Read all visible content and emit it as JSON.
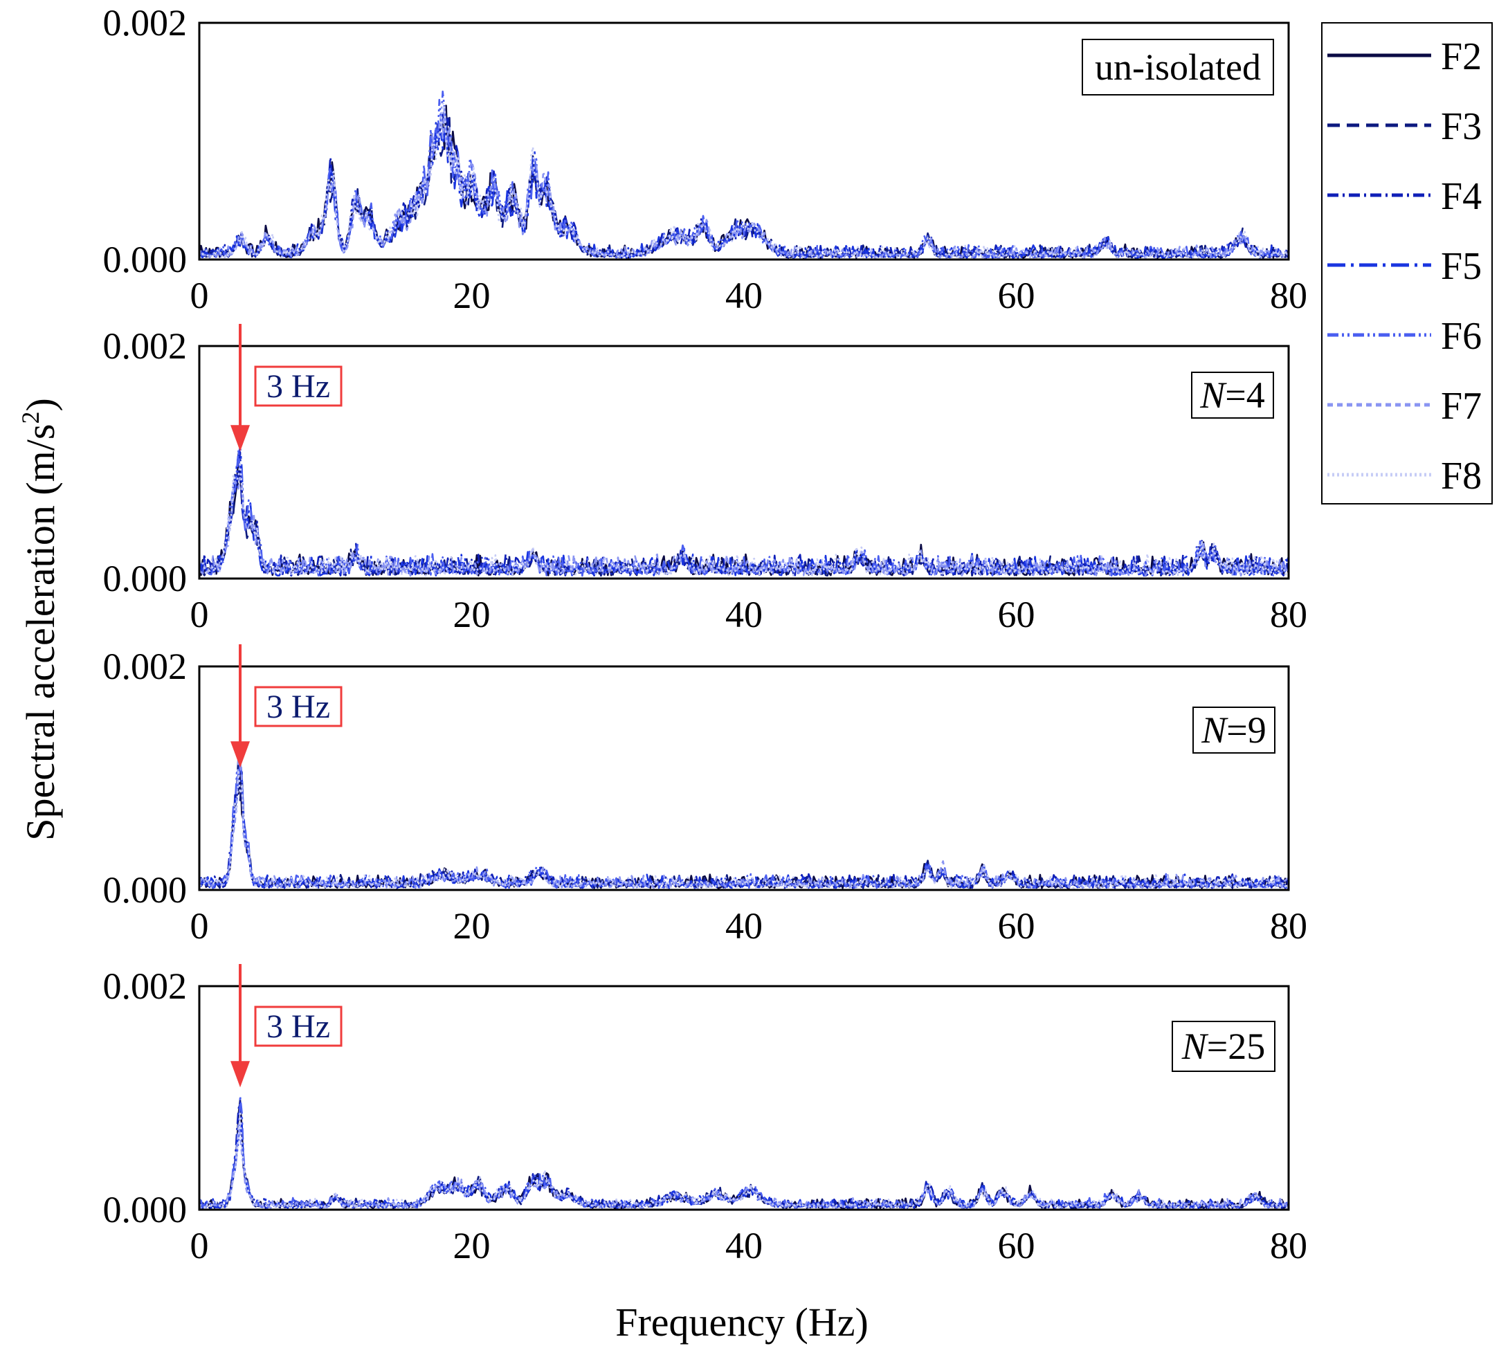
{
  "figure": {
    "ylabel": "Spectral acceleration (m/s",
    "ylabel_sup": "2",
    "ylabel_close": ")",
    "xlabel": "Frequency (Hz)"
  },
  "legend": [
    {
      "label": "F2",
      "color": "#0b0b45",
      "dash": "solid"
    },
    {
      "label": "F3",
      "color": "#0d1a80",
      "dash": "dash"
    },
    {
      "label": "F4",
      "color": "#1020b8",
      "dash": "dashdot"
    },
    {
      "label": "F5",
      "color": "#1a35e0",
      "dash": "longdashdot"
    },
    {
      "label": "F6",
      "color": "#4a5ef0",
      "dash": "dashdotdot"
    },
    {
      "label": "F7",
      "color": "#8a95f2",
      "dash": "shortdash"
    },
    {
      "label": "F8",
      "color": "#c6ccf6",
      "dash": "dot"
    }
  ],
  "annotation_color": "#f03c3c",
  "chart_data": [
    {
      "type": "line",
      "panel_label": "un-isolated",
      "xlabel": "Frequency (Hz)",
      "ylabel": "Spectral acceleration (m/s2)",
      "xlim": [
        0,
        80
      ],
      "ylim": [
        0,
        0.002
      ],
      "xticks": [
        "0",
        "20",
        "40",
        "60",
        "80"
      ],
      "yticks": [
        "0.000",
        "0.002"
      ],
      "series_names": [
        "F2",
        "F3",
        "F4",
        "F5",
        "F6",
        "F7",
        "F8"
      ],
      "base_level": 3e-05,
      "noise_level": 4e-05,
      "seed": 11,
      "peaks": [
        {
          "x": 3,
          "y": 0.00015,
          "w": 0.5
        },
        {
          "x": 5,
          "y": 0.00018,
          "w": 0.5
        },
        {
          "x": 8.5,
          "y": 0.00025,
          "w": 0.8
        },
        {
          "x": 9.7,
          "y": 0.00083,
          "w": 0.5
        },
        {
          "x": 11.5,
          "y": 0.00055,
          "w": 0.5
        },
        {
          "x": 12.5,
          "y": 0.00038,
          "w": 0.6
        },
        {
          "x": 15,
          "y": 0.0004,
          "w": 1.2
        },
        {
          "x": 16.5,
          "y": 0.00055,
          "w": 0.8
        },
        {
          "x": 17.3,
          "y": 0.0009,
          "w": 0.5
        },
        {
          "x": 18,
          "y": 0.00115,
          "w": 0.5
        },
        {
          "x": 18.8,
          "y": 0.00085,
          "w": 0.6
        },
        {
          "x": 20,
          "y": 0.00078,
          "w": 0.7
        },
        {
          "x": 21.5,
          "y": 0.00072,
          "w": 0.7
        },
        {
          "x": 23,
          "y": 0.00062,
          "w": 0.7
        },
        {
          "x": 24.5,
          "y": 0.00087,
          "w": 0.5
        },
        {
          "x": 25.5,
          "y": 0.00068,
          "w": 0.6
        },
        {
          "x": 27,
          "y": 0.0003,
          "w": 1.0
        },
        {
          "x": 35,
          "y": 0.0002,
          "w": 1.5
        },
        {
          "x": 37,
          "y": 0.00027,
          "w": 0.6
        },
        {
          "x": 39.5,
          "y": 0.00024,
          "w": 1.2
        },
        {
          "x": 41,
          "y": 0.0002,
          "w": 1.0
        },
        {
          "x": 53.5,
          "y": 0.00015,
          "w": 0.4
        },
        {
          "x": 66.5,
          "y": 0.00012,
          "w": 0.5
        },
        {
          "x": 76.5,
          "y": 0.00017,
          "w": 0.6
        }
      ]
    },
    {
      "type": "line",
      "panel_label_italic": "N",
      "panel_label": "=4",
      "annotation": "3 Hz",
      "annotation_x": 3,
      "xlabel": "Frequency (Hz)",
      "ylabel": "Spectral acceleration (m/s2)",
      "xlim": [
        0,
        80
      ],
      "ylim": [
        0,
        0.002
      ],
      "xticks": [
        "0",
        "20",
        "40",
        "60",
        "80"
      ],
      "yticks": [
        "0.000",
        "0.002"
      ],
      "series_names": [
        "F2",
        "F3",
        "F4",
        "F5",
        "F6",
        "F7",
        "F8"
      ],
      "base_level": 6e-05,
      "noise_level": 6e-05,
      "seed": 23,
      "peaks": [
        {
          "x": 3,
          "y": 0.00105,
          "w": 0.35
        },
        {
          "x": 2.5,
          "y": 0.0006,
          "w": 0.4
        },
        {
          "x": 3.7,
          "y": 0.00052,
          "w": 0.3
        },
        {
          "x": 4.2,
          "y": 0.00035,
          "w": 0.3
        },
        {
          "x": 2,
          "y": 0.0002,
          "w": 0.4
        },
        {
          "x": 11.5,
          "y": 0.00015,
          "w": 0.4
        },
        {
          "x": 24.5,
          "y": 0.00015,
          "w": 0.4
        },
        {
          "x": 35.5,
          "y": 0.00014,
          "w": 0.4
        },
        {
          "x": 48.5,
          "y": 0.00016,
          "w": 0.4
        },
        {
          "x": 53,
          "y": 0.00014,
          "w": 0.4
        },
        {
          "x": 73.5,
          "y": 0.0002,
          "w": 0.4
        },
        {
          "x": 74.5,
          "y": 0.00017,
          "w": 0.4
        }
      ]
    },
    {
      "type": "line",
      "panel_label_italic": "N",
      "panel_label": "=9",
      "annotation": "3 Hz",
      "annotation_x": 3,
      "xlabel": "Frequency (Hz)",
      "ylabel": "Spectral acceleration (m/s2)",
      "xlim": [
        0,
        80
      ],
      "ylim": [
        0,
        0.002
      ],
      "xticks": [
        "0",
        "20",
        "40",
        "60",
        "80"
      ],
      "yticks": [
        "0.000",
        "0.002"
      ],
      "series_names": [
        "F2",
        "F3",
        "F4",
        "F5",
        "F6",
        "F7",
        "F8"
      ],
      "base_level": 4e-05,
      "noise_level": 4e-05,
      "seed": 37,
      "peaks": [
        {
          "x": 3,
          "y": 0.00105,
          "w": 0.3
        },
        {
          "x": 2.6,
          "y": 0.00065,
          "w": 0.35
        },
        {
          "x": 3.5,
          "y": 0.00038,
          "w": 0.3
        },
        {
          "x": 18,
          "y": 0.0001,
          "w": 1.0
        },
        {
          "x": 20.5,
          "y": 0.0001,
          "w": 1.0
        },
        {
          "x": 25,
          "y": 0.00014,
          "w": 0.6
        },
        {
          "x": 53.5,
          "y": 0.0002,
          "w": 0.35
        },
        {
          "x": 54.5,
          "y": 0.00016,
          "w": 0.35
        },
        {
          "x": 57.5,
          "y": 0.00016,
          "w": 0.35
        },
        {
          "x": 59.5,
          "y": 0.0001,
          "w": 0.5
        }
      ]
    },
    {
      "type": "line",
      "panel_label_italic": "N",
      "panel_label": "=25",
      "annotation": "3 Hz",
      "annotation_x": 3,
      "xlabel": "Frequency (Hz)",
      "ylabel": "Spectral acceleration (m/s2)",
      "xlim": [
        0,
        80
      ],
      "ylim": [
        0,
        0.002
      ],
      "xticks": [
        "0",
        "20",
        "40",
        "60",
        "80"
      ],
      "yticks": [
        "0.000",
        "0.002"
      ],
      "series_names": [
        "F2",
        "F3",
        "F4",
        "F5",
        "F6",
        "F7",
        "F8"
      ],
      "base_level": 3e-05,
      "noise_level": 3e-05,
      "seed": 53,
      "peaks": [
        {
          "x": 3,
          "y": 0.00098,
          "w": 0.25
        },
        {
          "x": 2.6,
          "y": 0.00035,
          "w": 0.35
        },
        {
          "x": 3.5,
          "y": 0.0002,
          "w": 0.3
        },
        {
          "x": 10,
          "y": 0.0001,
          "w": 0.4
        },
        {
          "x": 17.5,
          "y": 0.0002,
          "w": 0.8
        },
        {
          "x": 19,
          "y": 0.00022,
          "w": 0.8
        },
        {
          "x": 20.5,
          "y": 0.00024,
          "w": 0.6
        },
        {
          "x": 22.5,
          "y": 0.00018,
          "w": 0.8
        },
        {
          "x": 24.5,
          "y": 0.00025,
          "w": 0.6
        },
        {
          "x": 25.5,
          "y": 0.00026,
          "w": 0.6
        },
        {
          "x": 27,
          "y": 0.00012,
          "w": 0.8
        },
        {
          "x": 35,
          "y": 0.0001,
          "w": 1.2
        },
        {
          "x": 38,
          "y": 0.00012,
          "w": 1.0
        },
        {
          "x": 40.5,
          "y": 0.00016,
          "w": 1.0
        },
        {
          "x": 53.5,
          "y": 0.0002,
          "w": 0.4
        },
        {
          "x": 55,
          "y": 0.00015,
          "w": 0.5
        },
        {
          "x": 57.5,
          "y": 0.00018,
          "w": 0.4
        },
        {
          "x": 59,
          "y": 0.00016,
          "w": 0.5
        },
        {
          "x": 61,
          "y": 0.00012,
          "w": 0.5
        },
        {
          "x": 67,
          "y": 0.00012,
          "w": 0.5
        },
        {
          "x": 69,
          "y": 0.0001,
          "w": 0.5
        },
        {
          "x": 77.5,
          "y": 0.0001,
          "w": 0.5
        }
      ]
    }
  ]
}
